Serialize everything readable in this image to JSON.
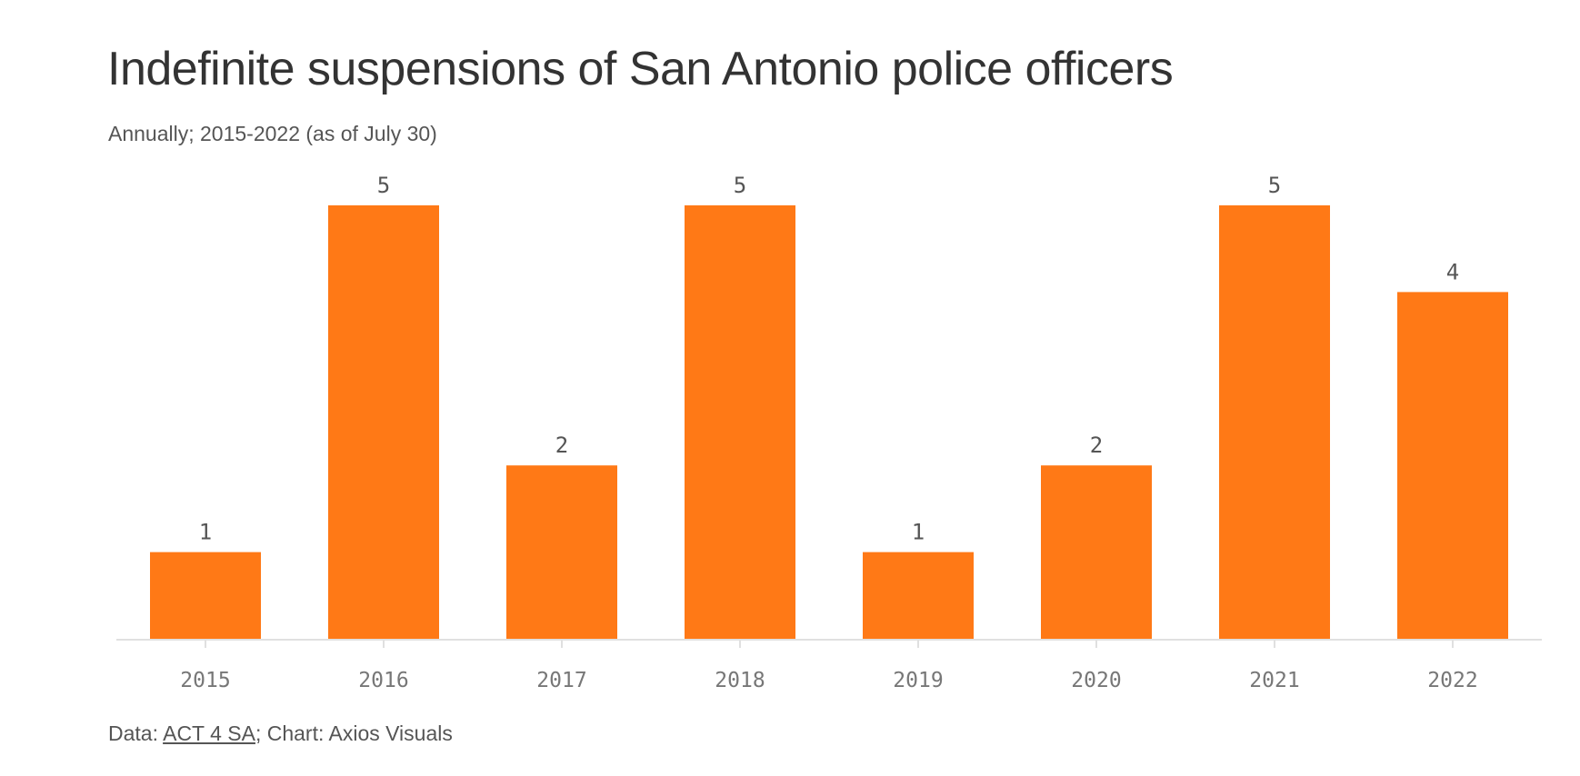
{
  "chart_data": {
    "type": "bar",
    "title": "Indefinite suspensions of San Antonio police officers",
    "subtitle": "Annually; 2015-2022 (as of July 30)",
    "categories": [
      "2015",
      "2016",
      "2017",
      "2018",
      "2019",
      "2020",
      "2021",
      "2022"
    ],
    "values": [
      1,
      5,
      2,
      5,
      1,
      2,
      5,
      4
    ],
    "xlabel": "",
    "ylabel": "",
    "ylim": [
      0,
      5
    ],
    "grid": false,
    "bar_color": "#FF7916",
    "axis_color": "#E0E0E0"
  },
  "footer": {
    "prefix": "Data: ",
    "source_link": "ACT 4 SA",
    "suffix": "; Chart: Axios Visuals"
  }
}
